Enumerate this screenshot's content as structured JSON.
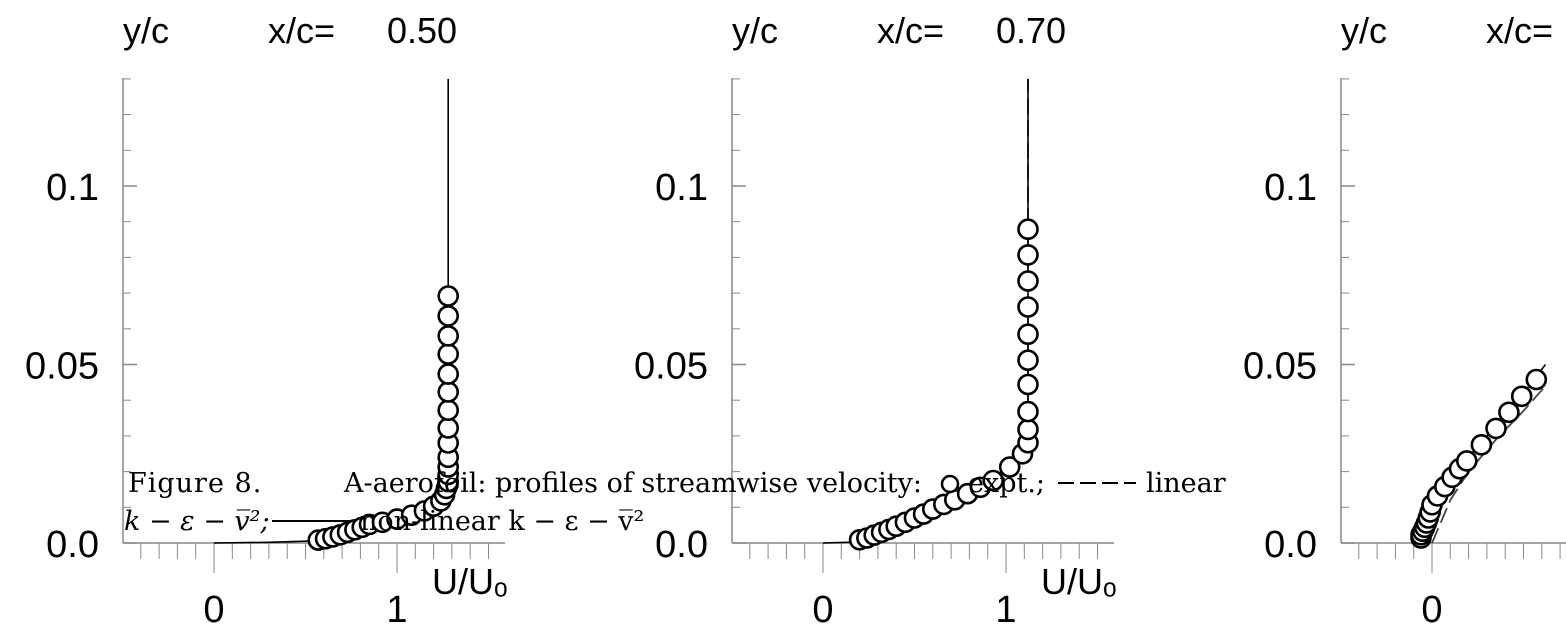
{
  "chart_data": [
    {
      "type": "scatter",
      "title_prefix": "x/c=",
      "title_value": "0.50",
      "ylabel": "y/c",
      "xlabel": "U/Uₒ",
      "yticks": [
        "0.0",
        "0.05",
        "0.1"
      ],
      "xticks": [
        "0",
        "1"
      ],
      "xlim": [
        -0.5,
        1.6
      ],
      "ylim": [
        0,
        0.13
      ],
      "expt": [
        [
          0.57,
          0.0008
        ],
        [
          0.61,
          0.0012
        ],
        [
          0.65,
          0.0017
        ],
        [
          0.69,
          0.0023
        ],
        [
          0.73,
          0.003
        ],
        [
          0.77,
          0.0037
        ],
        [
          0.81,
          0.0044
        ],
        [
          0.85,
          0.0052
        ],
        [
          0.92,
          0.0058
        ],
        [
          1.0,
          0.0067
        ],
        [
          1.08,
          0.0078
        ],
        [
          1.15,
          0.009
        ],
        [
          1.2,
          0.0103
        ],
        [
          1.24,
          0.0118
        ],
        [
          1.26,
          0.0135
        ],
        [
          1.27,
          0.0153
        ],
        [
          1.28,
          0.0172
        ],
        [
          1.28,
          0.0192
        ],
        [
          1.28,
          0.0213
        ],
        [
          1.28,
          0.024
        ],
        [
          1.28,
          0.028
        ],
        [
          1.28,
          0.0322
        ],
        [
          1.28,
          0.0372
        ],
        [
          1.28,
          0.0423
        ],
        [
          1.28,
          0.0473
        ],
        [
          1.28,
          0.0529
        ],
        [
          1.28,
          0.058
        ],
        [
          1.28,
          0.0636
        ],
        [
          1.28,
          0.0692
        ]
      ],
      "solid": [
        [
          0,
          0
        ],
        [
          0.3,
          0.0002
        ],
        [
          0.5,
          0.0005
        ],
        [
          0.7,
          0.0025
        ],
        [
          0.9,
          0.0055
        ],
        [
          1.1,
          0.0085
        ],
        [
          1.22,
          0.011
        ],
        [
          1.26,
          0.014
        ],
        [
          1.27,
          0.02
        ],
        [
          1.28,
          0.03
        ],
        [
          1.28,
          0.05
        ],
        [
          1.28,
          0.07
        ],
        [
          1.28,
          0.1
        ],
        [
          1.28,
          0.13
        ]
      ],
      "dashed": []
    },
    {
      "type": "scatter",
      "title_prefix": "x/c=",
      "title_value": "0.70",
      "ylabel": "y/c",
      "xlabel": "U/Uₒ",
      "yticks": [
        "0.0",
        "0.05",
        "0.1"
      ],
      "xticks": [
        "0",
        "1"
      ],
      "xlim": [
        -0.5,
        1.6
      ],
      "ylim": [
        0,
        0.13
      ],
      "expt": [
        [
          0.2,
          0.0009
        ],
        [
          0.24,
          0.0014
        ],
        [
          0.28,
          0.0022
        ],
        [
          0.32,
          0.003
        ],
        [
          0.36,
          0.0038
        ],
        [
          0.4,
          0.0047
        ],
        [
          0.45,
          0.0058
        ],
        [
          0.5,
          0.007
        ],
        [
          0.55,
          0.0081
        ],
        [
          0.6,
          0.0095
        ],
        [
          0.66,
          0.0108
        ],
        [
          0.72,
          0.0121
        ],
        [
          0.79,
          0.0138
        ],
        [
          0.86,
          0.0156
        ],
        [
          0.93,
          0.0175
        ],
        [
          1.02,
          0.0213
        ],
        [
          1.09,
          0.025
        ],
        [
          1.12,
          0.0281
        ],
        [
          1.12,
          0.0318
        ],
        [
          1.12,
          0.0368
        ],
        [
          1.12,
          0.0444
        ],
        [
          1.12,
          0.0512
        ],
        [
          1.12,
          0.0585
        ],
        [
          1.12,
          0.0661
        ],
        [
          1.12,
          0.0734
        ],
        [
          1.12,
          0.0807
        ],
        [
          1.12,
          0.0879
        ]
      ],
      "solid": [
        [
          0,
          0
        ],
        [
          0.2,
          0.0003
        ],
        [
          0.4,
          0.0045
        ],
        [
          0.6,
          0.0095
        ],
        [
          0.8,
          0.015
        ],
        [
          1.0,
          0.0205
        ],
        [
          1.1,
          0.025
        ],
        [
          1.12,
          0.03
        ],
        [
          1.12,
          0.05
        ],
        [
          1.12,
          0.08
        ],
        [
          1.12,
          0.13
        ]
      ],
      "dashed": [
        [
          0.2,
          0.0003
        ],
        [
          0.4,
          0.004
        ],
        [
          0.6,
          0.0092
        ],
        [
          0.8,
          0.0148
        ],
        [
          1.0,
          0.02
        ],
        [
          1.1,
          0.025
        ],
        [
          1.12,
          0.03
        ],
        [
          1.12,
          0.05
        ],
        [
          1.12,
          0.08
        ],
        [
          1.12,
          0.13
        ]
      ]
    },
    {
      "type": "scatter",
      "title_prefix": "x/c=",
      "title_value": "",
      "ylabel": "y/c",
      "xlabel": "",
      "yticks": [
        "0.0",
        "0.05",
        "0.1"
      ],
      "xticks": [
        "0"
      ],
      "xlim": [
        -0.5,
        1.6
      ],
      "ylim": [
        0,
        0.13
      ],
      "expt": [
        [
          -0.06,
          0.0014
        ],
        [
          -0.06,
          0.0023
        ],
        [
          -0.05,
          0.0033
        ],
        [
          -0.04,
          0.0044
        ],
        [
          -0.03,
          0.0056
        ],
        [
          -0.02,
          0.007
        ],
        [
          -0.01,
          0.0087
        ],
        [
          0.0,
          0.0107
        ],
        [
          0.03,
          0.0132
        ],
        [
          0.07,
          0.0158
        ],
        [
          0.11,
          0.0184
        ],
        [
          0.15,
          0.0208
        ],
        [
          0.19,
          0.023
        ],
        [
          0.27,
          0.0275
        ],
        [
          0.35,
          0.0321
        ],
        [
          0.42,
          0.0366
        ],
        [
          0.49,
          0.0411
        ],
        [
          0.57,
          0.0458
        ]
      ],
      "solid": [
        [
          -0.05,
          0.0
        ],
        [
          -0.04,
          0.004
        ],
        [
          0.0,
          0.01
        ],
        [
          0.1,
          0.018
        ],
        [
          0.2,
          0.024
        ],
        [
          0.35,
          0.033
        ],
        [
          0.5,
          0.042
        ],
        [
          0.62,
          0.05
        ]
      ],
      "dashed": [
        [
          0.0,
          0.0
        ],
        [
          0.05,
          0.006
        ],
        [
          0.1,
          0.012
        ],
        [
          0.2,
          0.02
        ],
        [
          0.35,
          0.029
        ],
        [
          0.5,
          0.037
        ],
        [
          0.62,
          0.044
        ]
      ]
    }
  ],
  "caption": {
    "fig": "Figure 8.",
    "line1_a": "A-aerofoil: profiles of streamwise velocity:",
    "line1_b": "expt.;",
    "line1_c": "linear",
    "line2_a": "k − ε − v̅²;",
    "line2_b": "non-linear k − ε − v̅²"
  }
}
